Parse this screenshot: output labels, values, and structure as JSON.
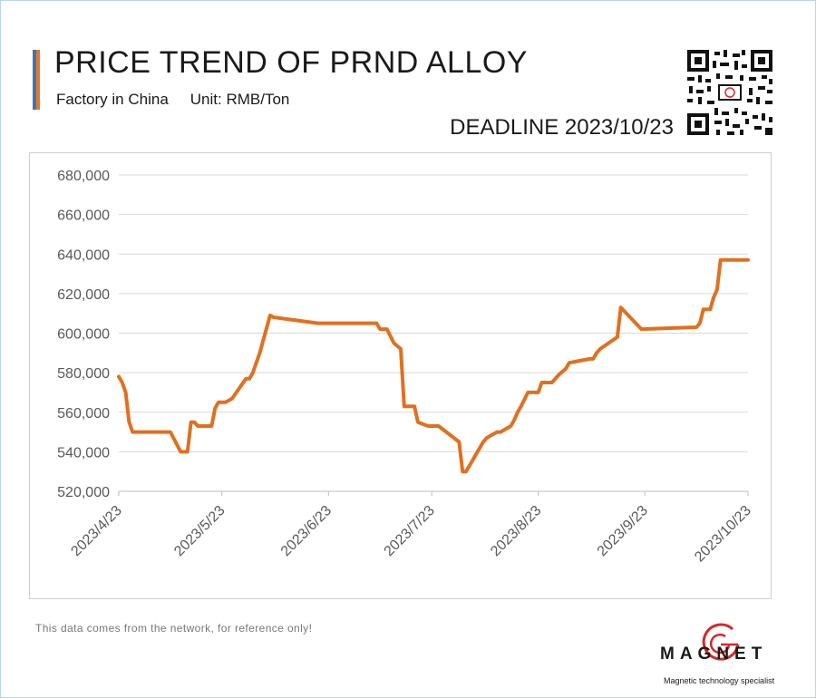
{
  "header": {
    "title": "PRICE TREND OF PRND ALLOY",
    "source": "Factory in China",
    "unit": "Unit: RMB/Ton",
    "deadline": "DEADLINE 2023/10/23"
  },
  "footer": {
    "note": "This data comes from the network, for reference only!",
    "logo_text": "MAGNET",
    "logo_tagline": "Magnetic technology specialist"
  },
  "colors": {
    "line": "#e07020",
    "accent_blue": "#3d74b9",
    "accent_orange": "#e07b2c",
    "logo_red": "#d42a2a"
  },
  "icons": {
    "qr": "qr-code-icon",
    "logo": "magnet-logo-icon"
  },
  "chart_data": {
    "type": "line",
    "title": "PRICE TREND OF PRND ALLOY",
    "xlabel": "",
    "ylabel": "",
    "x_tick_labels": [
      "2023/4/23",
      "2023/5/23",
      "2023/6/23",
      "2023/7/23",
      "2023/8/23",
      "2023/9/23",
      "2023/10/23"
    ],
    "ylim": [
      520000,
      680000
    ],
    "y_ticks": [
      520000,
      540000,
      560000,
      580000,
      600000,
      620000,
      640000,
      660000,
      680000
    ],
    "y_tick_labels": [
      "520,000",
      "540,000",
      "560,000",
      "580,000",
      "600,000",
      "620,000",
      "640,000",
      "660,000",
      "680,000"
    ],
    "grid": true,
    "legend": "none",
    "series": [
      {
        "x": [
          "2023-04-23",
          "2023-04-24",
          "2023-04-25",
          "2023-04-26",
          "2023-04-27",
          "2023-04-28",
          "2023-05-08",
          "2023-05-11",
          "2023-05-13",
          "2023-05-14",
          "2023-05-15",
          "2023-05-16",
          "2023-05-19",
          "2023-05-20",
          "2023-05-21",
          "2023-05-22",
          "2023-05-24",
          "2023-05-25",
          "2023-05-26",
          "2023-05-30",
          "2023-05-31",
          "2023-06-01",
          "2023-06-02",
          "2023-06-03",
          "2023-06-06",
          "2023-06-07",
          "2023-06-20",
          "2023-06-22",
          "2023-06-25",
          "2023-06-26",
          "2023-06-27",
          "2023-06-29",
          "2023-06-30",
          "2023-07-01",
          "2023-07-03",
          "2023-07-06",
          "2023-07-07",
          "2023-07-08",
          "2023-07-09",
          "2023-07-10",
          "2023-07-12",
          "2023-07-14",
          "2023-07-15",
          "2023-07-16",
          "2023-07-18",
          "2023-07-19",
          "2023-07-22",
          "2023-07-25",
          "2023-07-31",
          "2023-08-01",
          "2023-08-02",
          "2023-08-07",
          "2023-08-08",
          "2023-08-09",
          "2023-08-11",
          "2023-08-12",
          "2023-08-15",
          "2023-08-16",
          "2023-08-17",
          "2023-08-18",
          "2023-08-20",
          "2023-08-21",
          "2023-08-22",
          "2023-08-23",
          "2023-08-24",
          "2023-08-26",
          "2023-08-27",
          "2023-08-29",
          "2023-08-31",
          "2023-09-01",
          "2023-09-07",
          "2023-09-08",
          "2023-09-09",
          "2023-09-10",
          "2023-09-15",
          "2023-09-16",
          "2023-09-22",
          "2023-10-08",
          "2023-10-09",
          "2023-10-10",
          "2023-10-12",
          "2023-10-13",
          "2023-10-14",
          "2023-10-15",
          "2023-10-23"
        ],
        "values": [
          578000,
          575000,
          570000,
          555000,
          550000,
          550000,
          550000,
          540000,
          540000,
          555000,
          555000,
          553000,
          553000,
          553000,
          562000,
          565000,
          565000,
          566000,
          567000,
          577000,
          577000,
          580000,
          585000,
          590000,
          609000,
          608000,
          605000,
          605000,
          605000,
          605000,
          605000,
          605000,
          605000,
          605000,
          605000,
          605000,
          605000,
          602000,
          602000,
          602000,
          595000,
          592000,
          563000,
          563000,
          563000,
          555000,
          553000,
          553000,
          545000,
          530000,
          530000,
          545000,
          547000,
          548000,
          550000,
          550000,
          553000,
          556000,
          560000,
          563000,
          570000,
          570000,
          570000,
          570000,
          575000,
          575000,
          575000,
          579000,
          582000,
          585000,
          587000,
          587000,
          590000,
          592000,
          598000,
          613000,
          602000,
          603000,
          605000,
          612000,
          612000,
          618000,
          622000,
          637000,
          637000
        ]
      }
    ]
  }
}
